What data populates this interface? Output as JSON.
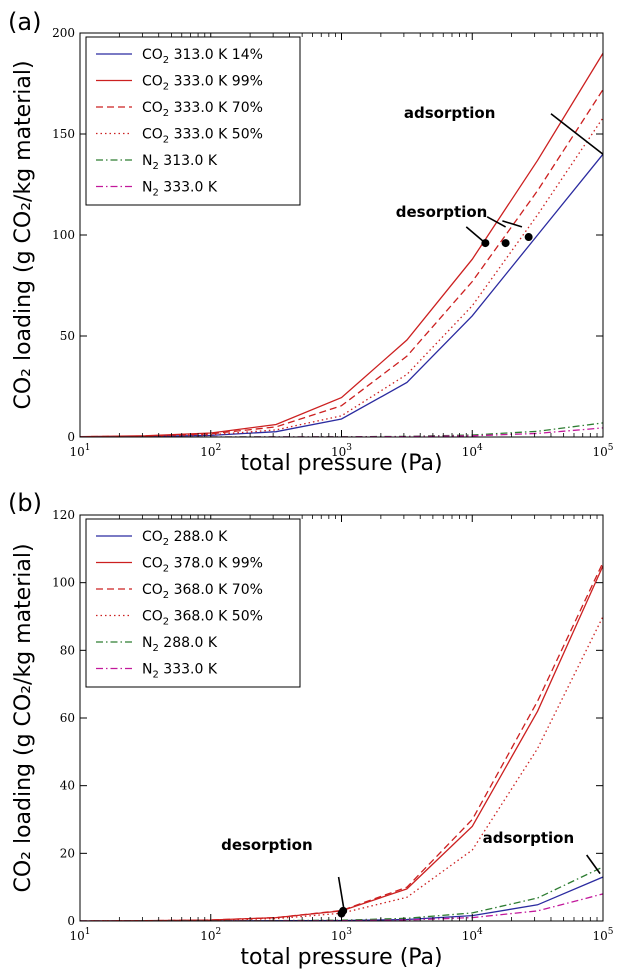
{
  "chart_data": [
    {
      "type": "line",
      "panel_label": "(a)",
      "xlabel": "total pressure (Pa)",
      "ylabel": "CO₂ loading (g CO₂/kg material)",
      "xscale": "log",
      "xlim": [
        10,
        100000
      ],
      "ylim": [
        0,
        200
      ],
      "x_ticks": [
        10,
        100,
        1000,
        10000,
        100000
      ],
      "y_ticks": [
        0,
        50,
        100,
        150,
        200
      ],
      "grid": false,
      "legend_placement": "top-left",
      "series": [
        {
          "name": "CO2 313.0 K 14%",
          "label_base": "CO",
          "label_sub": "2",
          "label_rest": " 313.0 K 14%",
          "color": "#2b2ba0",
          "dash": "solid",
          "x": [
            10,
            31.6,
            100,
            316,
            1000,
            3162,
            10000,
            31623,
            100000
          ],
          "values": [
            0.1,
            0.3,
            0.8,
            2.6,
            8.9,
            27,
            60,
            100,
            140
          ]
        },
        {
          "name": "CO2 333.0 K 99%",
          "label_base": "CO",
          "label_sub": "2",
          "label_rest": " 333.0 K 99%",
          "color": "#cc2020",
          "dash": "solid",
          "x": [
            10,
            31.6,
            100,
            316,
            1000,
            3162,
            10000,
            31623,
            100000
          ],
          "values": [
            0.2,
            0.6,
            2,
            6.2,
            19.5,
            48,
            88,
            137,
            190
          ]
        },
        {
          "name": "CO2 333.0 K 70%",
          "label_base": "CO",
          "label_sub": "2",
          "label_rest": " 333.0 K 70%",
          "color": "#cc2020",
          "dash": "dashed",
          "x": [
            10,
            31.6,
            100,
            316,
            1000,
            3162,
            10000,
            31623,
            100000
          ],
          "values": [
            0.15,
            0.5,
            1.6,
            5,
            15.5,
            40,
            77,
            122,
            172
          ]
        },
        {
          "name": "CO2 333.0 K 50%",
          "label_base": "CO",
          "label_sub": "2",
          "label_rest": " 333.0 K 50%",
          "color": "#cc2020",
          "dash": "dotted",
          "x": [
            10,
            31.6,
            100,
            316,
            1000,
            3162,
            10000,
            31623,
            100000
          ],
          "values": [
            0.1,
            0.4,
            1.1,
            3.5,
            10.5,
            31,
            65,
            110,
            158
          ]
        },
        {
          "name": "N2 313.0 K",
          "label_base": "N",
          "label_sub": "2",
          "label_rest": " 313.0 K",
          "color": "#2e7d32",
          "dash": "dashdot",
          "x": [
            10,
            100,
            1000,
            3162,
            10000,
            31623,
            100000
          ],
          "values": [
            0,
            0.01,
            0.1,
            0.3,
            1,
            2.8,
            7
          ]
        },
        {
          "name": "N2 333.0 K",
          "label_base": "N",
          "label_sub": "2",
          "label_rest": " 333.0 K",
          "color": "#c2189b",
          "dash": "dashdot",
          "x": [
            10,
            100,
            1000,
            3162,
            10000,
            31623,
            100000
          ],
          "values": [
            0,
            0.01,
            0.06,
            0.2,
            0.6,
            1.8,
            4.5
          ]
        }
      ],
      "points": [
        {
          "x": 12600,
          "y": 96
        },
        {
          "x": 18000,
          "y": 96
        },
        {
          "x": 27000,
          "y": 99
        }
      ],
      "annotations": [
        {
          "text": "adsorption",
          "text_x": 3000,
          "text_y": 158,
          "lines": [
            {
              "from": [
                40000,
                160
              ],
              "to": [
                100000,
                140
              ]
            }
          ]
        },
        {
          "text": "desorption",
          "text_x": 2600,
          "text_y": 109,
          "lines": [
            {
              "from": [
                9000,
                104
              ],
              "to": [
                12600,
                96
              ]
            },
            {
              "from": [
                13000,
                109
              ],
              "to": [
                18000,
                104
              ]
            },
            {
              "from": [
                17000,
                107
              ],
              "to": [
                24000,
                104
              ]
            }
          ]
        }
      ]
    },
    {
      "type": "line",
      "panel_label": "(b)",
      "xlabel": "total pressure (Pa)",
      "ylabel": "CO₂ loading (g CO₂/kg material)",
      "xscale": "log",
      "xlim": [
        10,
        100000
      ],
      "ylim": [
        0,
        120
      ],
      "x_ticks": [
        10,
        100,
        1000,
        10000,
        100000
      ],
      "y_ticks": [
        0,
        20,
        40,
        60,
        80,
        100,
        120
      ],
      "grid": false,
      "legend_placement": "top-left",
      "series": [
        {
          "name": "CO2 288.0 K",
          "label_base": "CO",
          "label_sub": "2",
          "label_rest": " 288.0 K",
          "color": "#2b2ba0",
          "dash": "solid",
          "x": [
            10,
            100,
            1000,
            3162,
            10000,
            31623,
            100000
          ],
          "values": [
            0,
            0.02,
            0.15,
            0.45,
            1.6,
            4.8,
            13
          ]
        },
        {
          "name": "CO2 378.0 K 99%",
          "label_base": "CO",
          "label_sub": "2",
          "label_rest": " 378.0 K 99%",
          "color": "#cc2020",
          "dash": "solid",
          "x": [
            10,
            31.6,
            100,
            316,
            1000,
            3162,
            10000,
            31623,
            100000
          ],
          "values": [
            0.01,
            0.08,
            0.3,
            1,
            3,
            9.5,
            28,
            62,
            105
          ]
        },
        {
          "name": "CO2 368.0 K 70%",
          "label_base": "CO",
          "label_sub": "2",
          "label_rest": " 368.0 K 70%",
          "color": "#cc2020",
          "dash": "dashed",
          "x": [
            10,
            31.6,
            100,
            316,
            1000,
            3162,
            10000,
            31623,
            100000
          ],
          "values": [
            0.01,
            0.08,
            0.3,
            1,
            3.1,
            10,
            30,
            65,
            106
          ]
        },
        {
          "name": "CO2 368.0 K 50%",
          "label_base": "CO",
          "label_sub": "2",
          "label_rest": " 368.0 K 50%",
          "color": "#cc2020",
          "dash": "dotted",
          "x": [
            10,
            31.6,
            100,
            316,
            1000,
            3162,
            10000,
            31623,
            100000
          ],
          "values": [
            0.01,
            0.06,
            0.2,
            0.7,
            2.3,
            7,
            21,
            51,
            90
          ]
        },
        {
          "name": "N2 288.0 K",
          "label_base": "N",
          "label_sub": "2",
          "label_rest": " 288.0 K",
          "color": "#2e7d32",
          "dash": "dashdot",
          "x": [
            10,
            100,
            1000,
            3162,
            10000,
            31623,
            100000
          ],
          "values": [
            0,
            0.03,
            0.25,
            0.8,
            2.4,
            6.8,
            16
          ]
        },
        {
          "name": "N2 333.0 K",
          "label_base": "N",
          "label_sub": "2",
          "label_rest": " 333.0 K",
          "color": "#c2189b",
          "dash": "dashdot",
          "x": [
            10,
            100,
            1000,
            3162,
            10000,
            31623,
            100000
          ],
          "values": [
            0,
            0.01,
            0.1,
            0.3,
            1,
            3,
            8
          ]
        }
      ],
      "points": [
        {
          "x": 1000,
          "y": 2.2
        },
        {
          "x": 1030,
          "y": 3
        }
      ],
      "annotations": [
        {
          "text": "desorption",
          "text_x": 120,
          "text_y": 21,
          "lines": [
            {
              "from": [
                950,
                13
              ],
              "to": [
                1040,
                3.8
              ]
            }
          ]
        },
        {
          "text": "adsorption",
          "text_x": 12000,
          "text_y": 23,
          "lines": [
            {
              "from": [
                75000,
                19.5
              ],
              "to": [
                95000,
                14
              ]
            }
          ]
        }
      ]
    }
  ]
}
